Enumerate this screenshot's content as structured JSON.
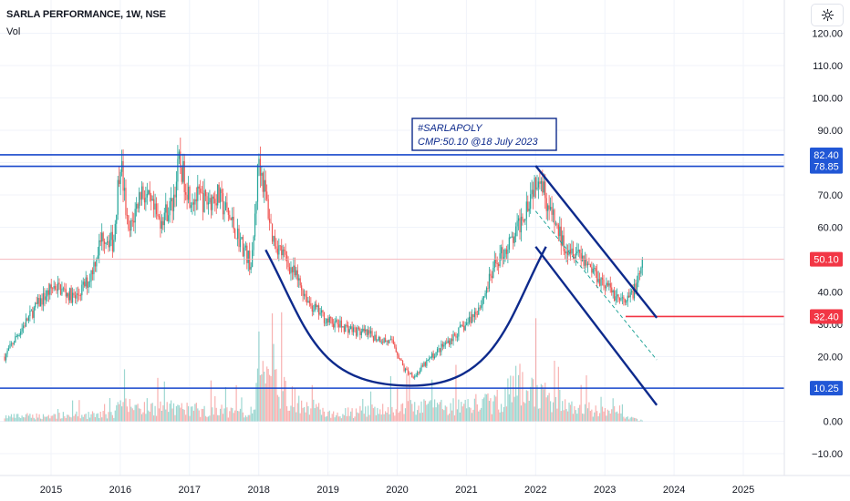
{
  "header": {
    "symbol_line": "SARLA PERFORMANCE, 1W, NSE",
    "indicator_label": "Vol"
  },
  "annotation": {
    "line1": "#SARLAPOLY",
    "line2": "CMP:50.10 @18 July 2023"
  },
  "icons": {
    "settings": "settings-icon"
  },
  "colors": {
    "up": "#26a69a",
    "down": "#ef5350",
    "level_line": "#1848cc",
    "pattern": "#0d2a8c",
    "resistance_label": "#2157d6",
    "current_label": "#f23645",
    "support_red": "#f23645",
    "grid": "#f0f3fa"
  },
  "chart_data": {
    "type": "candlestick",
    "title": "SARLA PERFORMANCE, 1W, NSE",
    "timeframe": "1W",
    "exchange": "NSE",
    "xlabel": "",
    "ylabel": "",
    "ylim": [
      -15,
      122
    ],
    "y_ticks": [
      -10,
      0,
      10,
      20,
      30,
      40,
      50,
      60,
      70,
      80,
      90,
      100,
      110,
      120
    ],
    "y_tick_labels": [
      "−10.00",
      "0.00",
      "10.00",
      "20.00",
      "30.00",
      "40.00",
      "50.00",
      "60.00",
      "70.00",
      "80.00",
      "90.00",
      "100.00",
      "110.00",
      "120.00"
    ],
    "x_ticks": [
      2015,
      2016,
      2017,
      2018,
      2019,
      2020,
      2021,
      2022,
      2023,
      2024,
      2025
    ],
    "x_tick_labels": [
      "2015",
      "2016",
      "2017",
      "2018",
      "2019",
      "2020",
      "2021",
      "2022",
      "2023",
      "2024",
      "2025"
    ],
    "xlim": [
      2014.3,
      2025.7
    ],
    "price_path": [
      [
        2014.33,
        20
      ],
      [
        2014.55,
        28
      ],
      [
        2014.8,
        36
      ],
      [
        2015.05,
        42
      ],
      [
        2015.35,
        38
      ],
      [
        2015.55,
        44
      ],
      [
        2015.75,
        58
      ],
      [
        2015.9,
        55
      ],
      [
        2016.0,
        82
      ],
      [
        2016.12,
        57
      ],
      [
        2016.3,
        72
      ],
      [
        2016.55,
        62
      ],
      [
        2016.75,
        67
      ],
      [
        2016.85,
        80
      ],
      [
        2017.0,
        70
      ],
      [
        2017.25,
        68
      ],
      [
        2017.4,
        70
      ],
      [
        2017.6,
        62
      ],
      [
        2017.9,
        48
      ],
      [
        2018.0,
        82
      ],
      [
        2018.2,
        57
      ],
      [
        2018.5,
        46
      ],
      [
        2018.75,
        36
      ],
      [
        2019.0,
        31
      ],
      [
        2019.4,
        28
      ],
      [
        2019.7,
        26
      ],
      [
        2019.95,
        24
      ],
      [
        2020.1,
        16
      ],
      [
        2020.25,
        14
      ],
      [
        2020.5,
        20
      ],
      [
        2020.8,
        26
      ],
      [
        2021.0,
        30
      ],
      [
        2021.2,
        36
      ],
      [
        2021.45,
        50
      ],
      [
        2021.7,
        57
      ],
      [
        2021.95,
        72
      ],
      [
        2022.05,
        78
      ],
      [
        2022.2,
        65
      ],
      [
        2022.4,
        55
      ],
      [
        2022.6,
        53
      ],
      [
        2022.75,
        49
      ],
      [
        2022.9,
        45
      ],
      [
        2023.1,
        40
      ],
      [
        2023.3,
        36
      ],
      [
        2023.5,
        44
      ],
      [
        2023.55,
        50.1
      ]
    ],
    "volume_path": [
      [
        2014.33,
        2
      ],
      [
        2015.9,
        3
      ],
      [
        2016.0,
        7
      ],
      [
        2017.9,
        4
      ],
      [
        2018.0,
        18
      ],
      [
        2019.0,
        3
      ],
      [
        2020.2,
        6
      ],
      [
        2021.4,
        8
      ],
      [
        2021.75,
        16
      ],
      [
        2022.0,
        12
      ],
      [
        2022.6,
        6
      ],
      [
        2023.0,
        4
      ],
      [
        2023.5,
        0.5
      ]
    ],
    "horizontal_levels": [
      {
        "value": 82.4,
        "label": "82.40",
        "color": "#2157d6"
      },
      {
        "value": 78.85,
        "label": "78.85",
        "color": "#2157d6"
      },
      {
        "value": 10.25,
        "label": "10.25",
        "color": "#2157d6"
      }
    ],
    "current_price": {
      "value": 50.1,
      "label": "50.10",
      "color": "#f23645"
    },
    "support_ray": {
      "value": 32.4,
      "label": "32.40",
      "x_start": 2023.3,
      "color": "#f23645"
    },
    "cup_curve": {
      "x_start": 2018.1,
      "y_start": 53,
      "x_bottom": 2020.2,
      "y_bottom": 11,
      "x_end": 2022.15,
      "y_end": 54
    },
    "channel_upper": [
      [
        2022.0,
        79
      ],
      [
        2023.75,
        32
      ]
    ],
    "channel_lower": [
      [
        2022.0,
        54
      ],
      [
        2023.75,
        5
      ]
    ],
    "channel_mid_dashed": [
      [
        2022.0,
        65
      ],
      [
        2023.75,
        19
      ]
    ],
    "annotation_label": "#SARLAPOLY\nCMP:50.10 @18 July 2023"
  }
}
